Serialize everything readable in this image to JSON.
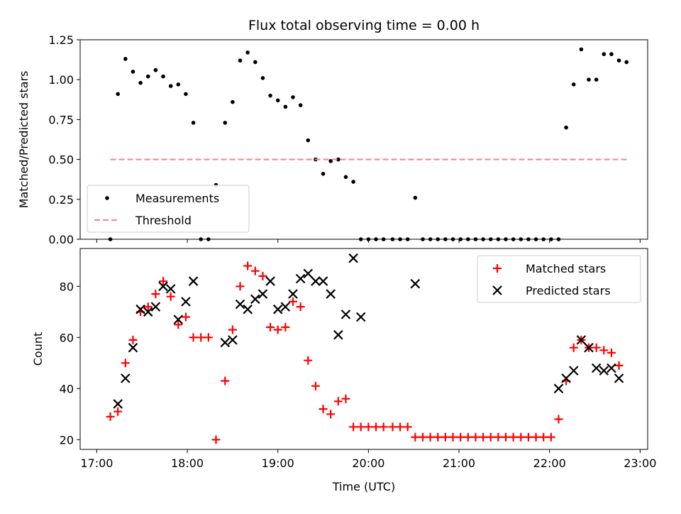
{
  "title": "Flux total observing time = 0.00 h",
  "chart_data": [
    {
      "type": "scatter",
      "ylabel": "Matched/Predicted stars",
      "ylim": [
        0,
        1.25
      ],
      "yticks": [
        0,
        0.25,
        0.5,
        0.75,
        1.0,
        1.25
      ],
      "ytick_labels": [
        "0.00",
        "0.25",
        "0.50",
        "0.75",
        "1.00",
        "1.25"
      ],
      "xlim": [
        "16:49",
        "23:05"
      ],
      "xticks": [
        "17:00",
        "18:00",
        "19:00",
        "20:00",
        "21:00",
        "22:00",
        "23:00"
      ],
      "legend_position": "bottom-left",
      "series": [
        {
          "name": "Measurements",
          "marker": "dot",
          "color": "#000000",
          "points": [
            [
              "17:09",
              0.0
            ],
            [
              "17:14",
              0.91
            ],
            [
              "17:19",
              1.13
            ],
            [
              "17:24",
              1.05
            ],
            [
              "17:29",
              0.98
            ],
            [
              "17:34",
              1.02
            ],
            [
              "17:39",
              1.06
            ],
            [
              "17:44",
              1.02
            ],
            [
              "17:49",
              0.96
            ],
            [
              "17:54",
              0.97
            ],
            [
              "17:59",
              0.91
            ],
            [
              "18:04",
              0.73
            ],
            [
              "18:09",
              0.0
            ],
            [
              "18:14",
              0.0
            ],
            [
              "18:19",
              0.34
            ],
            [
              "18:25",
              0.73
            ],
            [
              "18:30",
              0.86
            ],
            [
              "18:35",
              1.12
            ],
            [
              "18:40",
              1.17
            ],
            [
              "18:45",
              1.11
            ],
            [
              "18:50",
              1.01
            ],
            [
              "18:55",
              0.9
            ],
            [
              "19:00",
              0.87
            ],
            [
              "19:05",
              0.83
            ],
            [
              "19:10",
              0.89
            ],
            [
              "19:15",
              0.84
            ],
            [
              "19:20",
              0.62
            ],
            [
              "19:25",
              0.5
            ],
            [
              "19:30",
              0.41
            ],
            [
              "19:35",
              0.49
            ],
            [
              "19:40",
              0.5
            ],
            [
              "19:45",
              0.39
            ],
            [
              "19:50",
              0.36
            ],
            [
              "19:55",
              0.0
            ],
            [
              "20:00",
              0.0
            ],
            [
              "20:05",
              0.0
            ],
            [
              "20:10",
              0.0
            ],
            [
              "20:16",
              0.0
            ],
            [
              "20:21",
              0.0
            ],
            [
              "20:26",
              0.0
            ],
            [
              "20:31",
              0.26
            ],
            [
              "20:36",
              0.0
            ],
            [
              "20:41",
              0.0
            ],
            [
              "20:46",
              0.0
            ],
            [
              "20:51",
              0.0
            ],
            [
              "20:56",
              0.0
            ],
            [
              "21:01",
              0.0
            ],
            [
              "21:06",
              0.0
            ],
            [
              "21:11",
              0.0
            ],
            [
              "21:16",
              0.0
            ],
            [
              "21:21",
              0.0
            ],
            [
              "21:26",
              0.0
            ],
            [
              "21:31",
              0.0
            ],
            [
              "21:36",
              0.0
            ],
            [
              "21:41",
              0.0
            ],
            [
              "21:46",
              0.0
            ],
            [
              "21:51",
              0.0
            ],
            [
              "21:56",
              0.0
            ],
            [
              "22:01",
              0.0
            ],
            [
              "22:06",
              0.0
            ],
            [
              "22:11",
              0.7
            ],
            [
              "22:16",
              0.97
            ],
            [
              "22:21",
              1.19
            ],
            [
              "22:26",
              1.0
            ],
            [
              "22:31",
              1.0
            ],
            [
              "22:36",
              1.16
            ],
            [
              "22:41",
              1.16
            ],
            [
              "22:46",
              1.12
            ],
            [
              "22:51",
              1.11
            ]
          ]
        },
        {
          "name": "Threshold",
          "marker": "dashed-line",
          "color": "#ff7f7f",
          "points": [
            [
              "17:09",
              0.5
            ],
            [
              "22:51",
              0.5
            ]
          ]
        }
      ]
    },
    {
      "type": "scatter",
      "ylabel": "Count",
      "xlabel": "Time (UTC)",
      "ylim": [
        16.2,
        94.8
      ],
      "yticks": [
        20,
        40,
        60,
        80
      ],
      "ytick_labels": [
        "20",
        "40",
        "60",
        "80"
      ],
      "xlim": [
        "16:49",
        "23:05"
      ],
      "xticks": [
        "17:00",
        "18:00",
        "19:00",
        "20:00",
        "21:00",
        "22:00",
        "23:00"
      ],
      "xtick_labels": [
        "17:00",
        "18:00",
        "19:00",
        "20:00",
        "21:00",
        "22:00",
        "23:00"
      ],
      "legend_position": "top-right",
      "series": [
        {
          "name": "Matched stars",
          "marker": "plus",
          "color": "#ff0000",
          "points": [
            [
              "17:09",
              29
            ],
            [
              "17:14",
              31
            ],
            [
              "17:19",
              50
            ],
            [
              "17:24",
              59
            ],
            [
              "17:29",
              70
            ],
            [
              "17:34",
              72
            ],
            [
              "17:39",
              77
            ],
            [
              "17:44",
              82
            ],
            [
              "17:49",
              76
            ],
            [
              "17:54",
              65
            ],
            [
              "17:59",
              68
            ],
            [
              "18:04",
              60
            ],
            [
              "18:09",
              60
            ],
            [
              "18:14",
              60
            ],
            [
              "18:19",
              20
            ],
            [
              "18:25",
              43
            ],
            [
              "18:30",
              63
            ],
            [
              "18:35",
              80
            ],
            [
              "18:40",
              88
            ],
            [
              "18:45",
              86
            ],
            [
              "18:50",
              84
            ],
            [
              "18:55",
              64
            ],
            [
              "19:00",
              63
            ],
            [
              "19:05",
              64
            ],
            [
              "19:10",
              74
            ],
            [
              "19:15",
              72
            ],
            [
              "19:20",
              51
            ],
            [
              "19:25",
              41
            ],
            [
              "19:30",
              32
            ],
            [
              "19:35",
              30
            ],
            [
              "19:40",
              35
            ],
            [
              "19:45",
              36
            ],
            [
              "19:50",
              25
            ],
            [
              "19:55",
              25
            ],
            [
              "20:00",
              25
            ],
            [
              "20:05",
              25
            ],
            [
              "20:10",
              25
            ],
            [
              "20:16",
              25
            ],
            [
              "20:21",
              25
            ],
            [
              "20:26",
              25
            ],
            [
              "20:31",
              21
            ],
            [
              "20:36",
              21
            ],
            [
              "20:41",
              21
            ],
            [
              "20:46",
              21
            ],
            [
              "20:51",
              21
            ],
            [
              "20:56",
              21
            ],
            [
              "21:01",
              21
            ],
            [
              "21:06",
              21
            ],
            [
              "21:11",
              21
            ],
            [
              "21:16",
              21
            ],
            [
              "21:21",
              21
            ],
            [
              "21:26",
              21
            ],
            [
              "21:31",
              21
            ],
            [
              "21:36",
              21
            ],
            [
              "21:41",
              21
            ],
            [
              "21:46",
              21
            ],
            [
              "21:51",
              21
            ],
            [
              "21:56",
              21
            ],
            [
              "22:01",
              21
            ],
            [
              "22:06",
              28
            ],
            [
              "22:11",
              43
            ],
            [
              "22:16",
              56
            ],
            [
              "22:21",
              59
            ],
            [
              "22:26",
              56
            ],
            [
              "22:31",
              56
            ],
            [
              "22:36",
              55
            ],
            [
              "22:41",
              54
            ],
            [
              "22:46",
              49
            ]
          ]
        },
        {
          "name": "Predicted stars",
          "marker": "x",
          "color": "#000000",
          "points": [
            [
              "17:14",
              34
            ],
            [
              "17:19",
              44
            ],
            [
              "17:24",
              56
            ],
            [
              "17:29",
              71
            ],
            [
              "17:34",
              70
            ],
            [
              "17:39",
              72
            ],
            [
              "17:44",
              80
            ],
            [
              "17:49",
              79
            ],
            [
              "17:54",
              67
            ],
            [
              "17:59",
              74
            ],
            [
              "18:04",
              82
            ],
            [
              "18:25",
              58
            ],
            [
              "18:30",
              59
            ],
            [
              "18:35",
              73
            ],
            [
              "18:40",
              71
            ],
            [
              "18:45",
              75
            ],
            [
              "18:50",
              77
            ],
            [
              "18:55",
              82
            ],
            [
              "19:00",
              71
            ],
            [
              "19:05",
              72
            ],
            [
              "19:10",
              77
            ],
            [
              "19:15",
              83
            ],
            [
              "19:20",
              85
            ],
            [
              "19:25",
              82
            ],
            [
              "19:30",
              82
            ],
            [
              "19:35",
              77
            ],
            [
              "19:40",
              61
            ],
            [
              "19:45",
              69
            ],
            [
              "19:50",
              91
            ],
            [
              "19:55",
              68
            ],
            [
              "20:31",
              81
            ],
            [
              "22:06",
              40
            ],
            [
              "22:11",
              44
            ],
            [
              "22:16",
              47
            ],
            [
              "22:21",
              59
            ],
            [
              "22:26",
              56
            ],
            [
              "22:31",
              48
            ],
            [
              "22:36",
              47
            ],
            [
              "22:41",
              48
            ],
            [
              "22:46",
              44
            ]
          ]
        }
      ]
    }
  ]
}
